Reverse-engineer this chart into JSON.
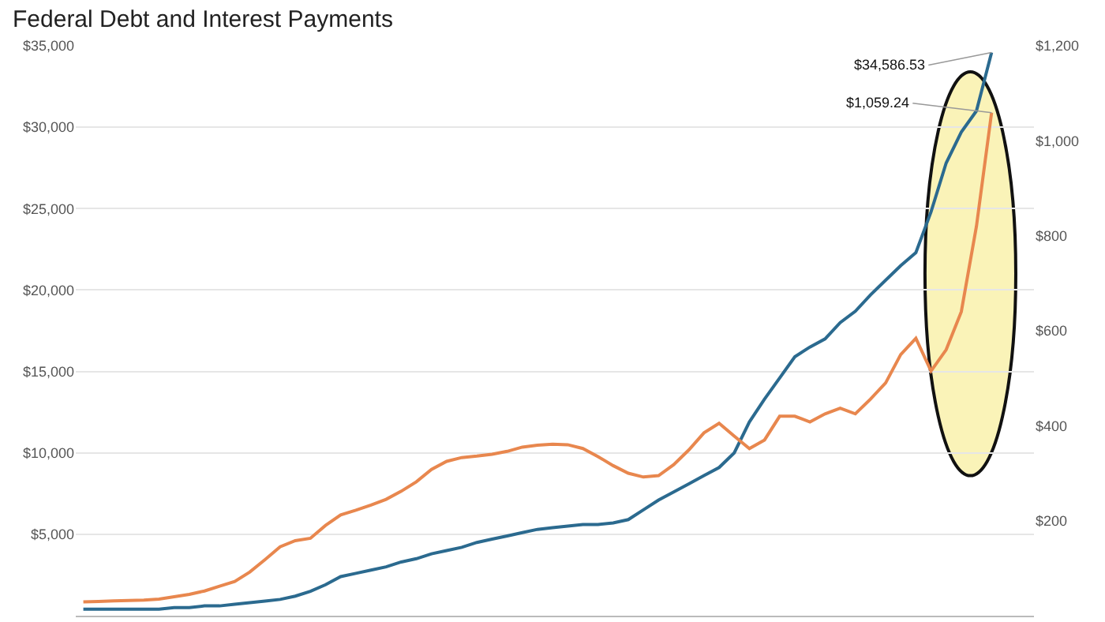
{
  "chart_data": {
    "type": "line",
    "title": "Federal Debt and Interest Payments",
    "categories": [
      null,
      null,
      null,
      null,
      null,
      null,
      null,
      null,
      null,
      null,
      null,
      null,
      null,
      null,
      null,
      null,
      null,
      null,
      null,
      null,
      null,
      null,
      null,
      null,
      null,
      null,
      null,
      null,
      null,
      null,
      null,
      null,
      null,
      null,
      null,
      null,
      null,
      null,
      null,
      null,
      null,
      null,
      null,
      null,
      null,
      null,
      null,
      null,
      null,
      null,
      null,
      null,
      null,
      null,
      null,
      null,
      null,
      null,
      null,
      null,
      null
    ],
    "series": [
      {
        "color": "#2b6a8f",
        "values": [
          400,
          400,
          400,
          400,
          400,
          400,
          500,
          500,
          600,
          600,
          700,
          800,
          900,
          1000,
          1200,
          1500,
          1900,
          2400,
          2600,
          2800,
          3000,
          3300,
          3500,
          3800,
          4000,
          4200,
          4500,
          4700,
          4900,
          5100,
          5300,
          5400,
          5500,
          5600,
          5600,
          5700,
          5900,
          6500,
          7100,
          7600,
          8100,
          8600,
          9100,
          10000,
          11900,
          13300,
          14600,
          15900,
          16500,
          17000,
          18000,
          18700,
          19700,
          20600,
          21500,
          22300,
          24800,
          27800,
          29700,
          31000,
          34586.53
        ],
        "value_labels": [
          null,
          null,
          null,
          null,
          null,
          null,
          null,
          null,
          null,
          null,
          null,
          null,
          null,
          null,
          null,
          null,
          null,
          null,
          null,
          null,
          null,
          null,
          null,
          null,
          null,
          null,
          null,
          null,
          null,
          null,
          null,
          null,
          null,
          null,
          null,
          null,
          null,
          null,
          null,
          null,
          null,
          null,
          null,
          null,
          null,
          null,
          null,
          null,
          null,
          null,
          null,
          null,
          null,
          null,
          null,
          null,
          null,
          null,
          null,
          null,
          "$34,586.53"
        ]
      },
      {
        "color": "#e8874e",
        "axis": "y2",
        "values": [
          29,
          30,
          31,
          32,
          33,
          35,
          40,
          45,
          52,
          62,
          72,
          92,
          118,
          145,
          158,
          163,
          190,
          212,
          222,
          233,
          245,
          262,
          282,
          308,
          325,
          333,
          336,
          340,
          346,
          355,
          359,
          361,
          360,
          352,
          335,
          316,
          300,
          292,
          295,
          318,
          349,
          385,
          405,
          378,
          352,
          370,
          420,
          420,
          408,
          425,
          437,
          425,
          456,
          490,
          550,
          584,
          515,
          560,
          640,
          820,
          1059.24
        ],
        "value_labels": [
          null,
          null,
          null,
          null,
          null,
          null,
          null,
          null,
          null,
          null,
          null,
          null,
          null,
          null,
          null,
          null,
          null,
          null,
          null,
          null,
          null,
          null,
          null,
          null,
          null,
          null,
          null,
          null,
          null,
          null,
          null,
          null,
          null,
          null,
          null,
          null,
          null,
          null,
          null,
          null,
          null,
          null,
          null,
          null,
          null,
          null,
          null,
          null,
          null,
          null,
          null,
          null,
          null,
          null,
          null,
          null,
          null,
          null,
          null,
          null,
          "$1,059.24"
        ]
      }
    ],
    "ylim": [
      0,
      35000
    ],
    "yticks": [
      {
        "value": 5000,
        "label": "$5,000"
      },
      {
        "value": 10000,
        "label": "$10,000"
      },
      {
        "value": 15000,
        "label": "$15,000"
      },
      {
        "value": 20000,
        "label": "$20,000"
      },
      {
        "value": 25000,
        "label": "$25,000"
      },
      {
        "value": 30000,
        "label": "$30,000"
      },
      {
        "value": 35000,
        "label": "$35,000"
      }
    ],
    "y2lim": [
      0,
      1200
    ],
    "y2ticks": [
      {
        "value": 200,
        "label": "$200"
      },
      {
        "value": 400,
        "label": "$400"
      },
      {
        "value": 600,
        "label": "$600"
      },
      {
        "value": 800,
        "label": "$800"
      },
      {
        "value": 1000,
        "label": "$1,000"
      },
      {
        "value": 1200,
        "label": "$1,200"
      }
    ],
    "grid": "y",
    "tick_labels": "y",
    "marker": "none",
    "line_style": "solid"
  }
}
